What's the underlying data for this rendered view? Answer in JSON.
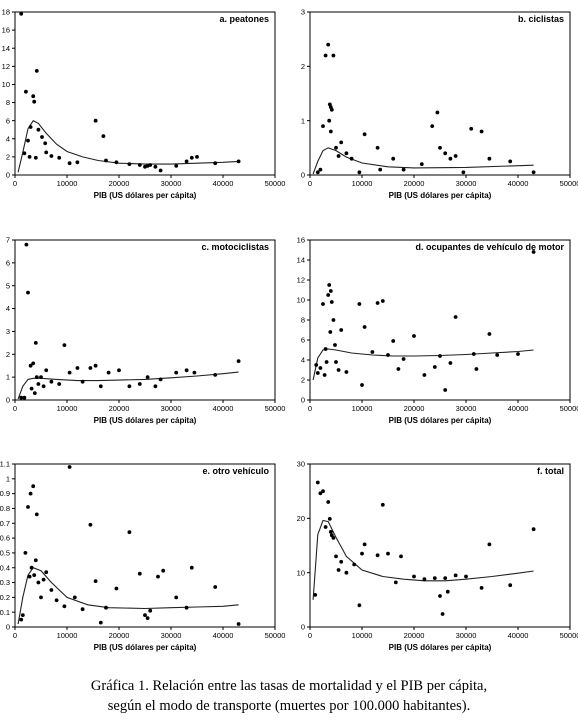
{
  "caption": {
    "line1": "Gráfica 1. Relación entre las tasas de mortalidad y el PIB per cápita,",
    "line2": "según el modo de transporte (muertes por 100.000 habitantes)."
  },
  "chart_data": [
    {
      "type": "scatter",
      "title": "a. peatones",
      "xlabel": "PIB (US dólares per cápita)",
      "ylabel": "",
      "xlim": [
        0,
        50000
      ],
      "ylim": [
        0,
        18
      ],
      "x_ticks": [
        0,
        10000,
        20000,
        30000,
        40000,
        50000
      ],
      "y_ticks": [
        0,
        2,
        4,
        6,
        8,
        10,
        12,
        14,
        16,
        18
      ],
      "points": [
        [
          1200,
          17.8
        ],
        [
          2100,
          9.2
        ],
        [
          3000,
          5.3
        ],
        [
          3500,
          8.7
        ],
        [
          3700,
          8.1
        ],
        [
          4200,
          11.5
        ],
        [
          2500,
          3.8
        ],
        [
          1800,
          2.4
        ],
        [
          2800,
          2.0
        ],
        [
          4000,
          1.9
        ],
        [
          4500,
          5.0
        ],
        [
          5200,
          4.2
        ],
        [
          5800,
          3.5
        ],
        [
          6000,
          2.5
        ],
        [
          7000,
          2.1
        ],
        [
          8500,
          1.9
        ],
        [
          10500,
          1.3
        ],
        [
          12000,
          1.4
        ],
        [
          15500,
          6.0
        ],
        [
          17000,
          4.3
        ],
        [
          17500,
          1.6
        ],
        [
          19500,
          1.4
        ],
        [
          22000,
          1.2
        ],
        [
          24000,
          1.1
        ],
        [
          25000,
          0.9
        ],
        [
          25500,
          1.0
        ],
        [
          26000,
          1.1
        ],
        [
          27000,
          0.9
        ],
        [
          28000,
          0.5
        ],
        [
          31000,
          1.0
        ],
        [
          33000,
          1.5
        ],
        [
          34000,
          1.9
        ],
        [
          35000,
          2.0
        ],
        [
          38500,
          1.3
        ],
        [
          43000,
          1.5
        ]
      ],
      "curve": [
        [
          600,
          0.3
        ],
        [
          1500,
          2.5
        ],
        [
          2500,
          5.1
        ],
        [
          3500,
          6.0
        ],
        [
          4500,
          5.7
        ],
        [
          6000,
          4.6
        ],
        [
          8000,
          3.4
        ],
        [
          10000,
          2.6
        ],
        [
          13000,
          2.0
        ],
        [
          16000,
          1.6
        ],
        [
          20000,
          1.3
        ],
        [
          25000,
          1.2
        ],
        [
          30000,
          1.2
        ],
        [
          35000,
          1.3
        ],
        [
          40000,
          1.4
        ],
        [
          43000,
          1.5
        ]
      ]
    },
    {
      "type": "scatter",
      "title": "b. ciclistas",
      "xlabel": "PIB (US dólares per cápita)",
      "ylabel": "",
      "xlim": [
        0,
        50000
      ],
      "ylim": [
        0,
        3
      ],
      "x_ticks": [
        0,
        10000,
        20000,
        30000,
        40000,
        50000
      ],
      "y_ticks": [
        0,
        1,
        2,
        3
      ],
      "points": [
        [
          1500,
          0.05
        ],
        [
          2000,
          0.1
        ],
        [
          2500,
          0.9
        ],
        [
          3000,
          2.2
        ],
        [
          3500,
          2.4
        ],
        [
          3800,
          1.3
        ],
        [
          4000,
          1.25
        ],
        [
          4200,
          1.2
        ],
        [
          4500,
          2.2
        ],
        [
          3700,
          1.0
        ],
        [
          4000,
          0.8
        ],
        [
          5000,
          0.5
        ],
        [
          5500,
          0.35
        ],
        [
          6000,
          0.6
        ],
        [
          7000,
          0.4
        ],
        [
          8000,
          0.3
        ],
        [
          9500,
          0.05
        ],
        [
          10500,
          0.75
        ],
        [
          13000,
          0.5
        ],
        [
          13500,
          0.1
        ],
        [
          16000,
          0.3
        ],
        [
          18000,
          0.1
        ],
        [
          21500,
          0.2
        ],
        [
          23500,
          0.9
        ],
        [
          24500,
          1.15
        ],
        [
          25000,
          0.5
        ],
        [
          26000,
          0.4
        ],
        [
          27000,
          0.3
        ],
        [
          28000,
          0.35
        ],
        [
          29500,
          0.05
        ],
        [
          31000,
          0.85
        ],
        [
          33000,
          0.8
        ],
        [
          34500,
          0.3
        ],
        [
          38500,
          0.25
        ],
        [
          43000,
          0.05
        ]
      ],
      "curve": [
        [
          600,
          0.02
        ],
        [
          1500,
          0.25
        ],
        [
          2500,
          0.45
        ],
        [
          3500,
          0.5
        ],
        [
          5000,
          0.45
        ],
        [
          7000,
          0.33
        ],
        [
          10000,
          0.22
        ],
        [
          15000,
          0.15
        ],
        [
          20000,
          0.13
        ],
        [
          30000,
          0.14
        ],
        [
          43000,
          0.18
        ]
      ]
    },
    {
      "type": "scatter",
      "title": "c. motociclistas",
      "xlabel": "PIB (US dólares per cápita)",
      "ylabel": "",
      "xlim": [
        0,
        50000
      ],
      "ylim": [
        0,
        7
      ],
      "x_ticks": [
        0,
        10000,
        20000,
        30000,
        40000,
        50000
      ],
      "y_ticks": [
        0,
        1,
        2,
        3,
        4,
        5,
        6,
        7
      ],
      "points": [
        [
          1200,
          0.1
        ],
        [
          1800,
          0.1
        ],
        [
          2200,
          6.8
        ],
        [
          2500,
          4.7
        ],
        [
          3000,
          1.5
        ],
        [
          3500,
          1.6
        ],
        [
          4000,
          2.5
        ],
        [
          4200,
          1.0
        ],
        [
          3200,
          0.5
        ],
        [
          3800,
          0.3
        ],
        [
          4500,
          0.7
        ],
        [
          5000,
          1.0
        ],
        [
          5500,
          0.6
        ],
        [
          6000,
          1.3
        ],
        [
          7000,
          0.8
        ],
        [
          8500,
          0.7
        ],
        [
          9500,
          2.4
        ],
        [
          10500,
          1.2
        ],
        [
          12000,
          1.4
        ],
        [
          13000,
          0.8
        ],
        [
          14500,
          1.4
        ],
        [
          15500,
          1.5
        ],
        [
          16500,
          0.6
        ],
        [
          18000,
          1.2
        ],
        [
          20000,
          1.3
        ],
        [
          22000,
          0.6
        ],
        [
          24000,
          0.7
        ],
        [
          25500,
          1.0
        ],
        [
          27000,
          0.6
        ],
        [
          28000,
          0.9
        ],
        [
          31000,
          1.2
        ],
        [
          33000,
          1.3
        ],
        [
          34500,
          1.2
        ],
        [
          38500,
          1.1
        ],
        [
          43000,
          1.7
        ]
      ],
      "curve": [
        [
          600,
          0.05
        ],
        [
          1500,
          0.6
        ],
        [
          2500,
          0.9
        ],
        [
          3500,
          0.95
        ],
        [
          5000,
          0.95
        ],
        [
          8000,
          0.9
        ],
        [
          12000,
          0.85
        ],
        [
          16000,
          0.85
        ],
        [
          20000,
          0.87
        ],
        [
          25000,
          0.9
        ],
        [
          30000,
          0.97
        ],
        [
          35000,
          1.05
        ],
        [
          40000,
          1.15
        ],
        [
          43000,
          1.22
        ]
      ]
    },
    {
      "type": "scatter",
      "title": "d. ocupantes de vehículo de motor",
      "xlabel": "PIB (US dólares per cápita)",
      "ylabel": "",
      "xlim": [
        0,
        50000
      ],
      "ylim": [
        0,
        16
      ],
      "x_ticks": [
        0,
        10000,
        20000,
        30000,
        40000,
        50000
      ],
      "y_ticks": [
        0,
        2,
        4,
        6,
        8,
        10,
        12,
        14,
        16
      ],
      "points": [
        [
          1200,
          3.5
        ],
        [
          1500,
          2.7
        ],
        [
          2000,
          3.2
        ],
        [
          2500,
          9.6
        ],
        [
          2800,
          2.5
        ],
        [
          3000,
          5.1
        ],
        [
          3200,
          3.8
        ],
        [
          3500,
          10.5
        ],
        [
          3700,
          11.5
        ],
        [
          4000,
          10.9
        ],
        [
          4200,
          9.8
        ],
        [
          4500,
          8.0
        ],
        [
          3900,
          6.8
        ],
        [
          4800,
          5.5
        ],
        [
          5000,
          3.8
        ],
        [
          5500,
          3.0
        ],
        [
          6000,
          7.0
        ],
        [
          7000,
          2.8
        ],
        [
          9500,
          9.6
        ],
        [
          10000,
          1.5
        ],
        [
          10500,
          7.3
        ],
        [
          12000,
          4.8
        ],
        [
          13000,
          9.7
        ],
        [
          14000,
          9.9
        ],
        [
          15000,
          4.5
        ],
        [
          16000,
          5.9
        ],
        [
          17000,
          3.1
        ],
        [
          18000,
          4.1
        ],
        [
          20000,
          6.4
        ],
        [
          22000,
          2.5
        ],
        [
          24000,
          3.3
        ],
        [
          25000,
          4.4
        ],
        [
          26000,
          1.0
        ],
        [
          27000,
          3.7
        ],
        [
          28000,
          8.3
        ],
        [
          31500,
          4.6
        ],
        [
          32000,
          3.1
        ],
        [
          34500,
          6.6
        ],
        [
          36000,
          4.5
        ],
        [
          40000,
          4.6
        ],
        [
          43000,
          14.8
        ]
      ],
      "curve": [
        [
          600,
          2.0
        ],
        [
          1500,
          4.2
        ],
        [
          2500,
          5.0
        ],
        [
          3500,
          5.1
        ],
        [
          5000,
          5.0
        ],
        [
          8000,
          4.7
        ],
        [
          12000,
          4.5
        ],
        [
          16000,
          4.4
        ],
        [
          20000,
          4.4
        ],
        [
          25000,
          4.45
        ],
        [
          30000,
          4.55
        ],
        [
          35000,
          4.7
        ],
        [
          40000,
          4.85
        ],
        [
          43000,
          5.0
        ]
      ]
    },
    {
      "type": "scatter",
      "title": "e. otro vehículo",
      "xlabel": "PIB (US dólares per cápita)",
      "ylabel": "",
      "xlim": [
        0,
        50000
      ],
      "ylim": [
        0,
        1.1
      ],
      "x_ticks": [
        0,
        10000,
        20000,
        30000,
        40000,
        50000
      ],
      "y_ticks": [
        0,
        0.1,
        0.2,
        0.3,
        0.4,
        0.5,
        0.6,
        0.7,
        0.8,
        0.9,
        1.0,
        1.1
      ],
      "y_tick_labels": [
        "0",
        "0.1",
        "0.2",
        "0.3",
        "0.4",
        "0.5",
        "0.6",
        "0.7",
        "0.8",
        "0.9",
        "1",
        "1.1"
      ],
      "points": [
        [
          1200,
          0.05
        ],
        [
          1500,
          0.08
        ],
        [
          2000,
          0.5
        ],
        [
          2500,
          0.81
        ],
        [
          2800,
          0.34
        ],
        [
          3000,
          0.9
        ],
        [
          3200,
          0.4
        ],
        [
          3500,
          0.95
        ],
        [
          3700,
          0.35
        ],
        [
          4000,
          0.45
        ],
        [
          4200,
          0.76
        ],
        [
          4500,
          0.3
        ],
        [
          5000,
          0.2
        ],
        [
          5500,
          0.32
        ],
        [
          6000,
          0.37
        ],
        [
          7000,
          0.25
        ],
        [
          8000,
          0.18
        ],
        [
          9500,
          0.14
        ],
        [
          10500,
          1.08
        ],
        [
          11500,
          0.2
        ],
        [
          13000,
          0.12
        ],
        [
          14500,
          0.69
        ],
        [
          15500,
          0.31
        ],
        [
          16500,
          0.03
        ],
        [
          17500,
          0.13
        ],
        [
          19500,
          0.26
        ],
        [
          22000,
          0.64
        ],
        [
          24000,
          0.36
        ],
        [
          25000,
          0.08
        ],
        [
          25500,
          0.06
        ],
        [
          26000,
          0.11
        ],
        [
          27500,
          0.34
        ],
        [
          28500,
          0.38
        ],
        [
          31000,
          0.2
        ],
        [
          33000,
          0.13
        ],
        [
          34000,
          0.4
        ],
        [
          38500,
          0.27
        ],
        [
          43000,
          0.02
        ]
      ],
      "curve": [
        [
          600,
          0.02
        ],
        [
          1500,
          0.2
        ],
        [
          2500,
          0.35
        ],
        [
          3500,
          0.4
        ],
        [
          5000,
          0.38
        ],
        [
          7000,
          0.3
        ],
        [
          10000,
          0.2
        ],
        [
          14000,
          0.15
        ],
        [
          18000,
          0.13
        ],
        [
          25000,
          0.125
        ],
        [
          30000,
          0.13
        ],
        [
          35000,
          0.135
        ],
        [
          40000,
          0.14
        ],
        [
          43000,
          0.15
        ]
      ]
    },
    {
      "type": "scatter",
      "title": "f. total",
      "xlabel": "PIB (US dólares per cápita)",
      "ylabel": "",
      "xlim": [
        0,
        50000
      ],
      "ylim": [
        0,
        30
      ],
      "x_ticks": [
        0,
        10000,
        20000,
        30000,
        40000,
        50000
      ],
      "y_ticks": [
        0,
        10,
        20,
        30
      ],
      "points": [
        [
          1000,
          5.9
        ],
        [
          1500,
          26.6
        ],
        [
          2000,
          24.6
        ],
        [
          2500,
          25.0
        ],
        [
          3000,
          18.4
        ],
        [
          3500,
          23.0
        ],
        [
          3800,
          19.9
        ],
        [
          4000,
          17.5
        ],
        [
          4200,
          16.9
        ],
        [
          4500,
          16.4
        ],
        [
          5000,
          13.0
        ],
        [
          5500,
          10.5
        ],
        [
          6000,
          12.0
        ],
        [
          7000,
          10.0
        ],
        [
          8500,
          11.5
        ],
        [
          9500,
          4.0
        ],
        [
          10000,
          13.5
        ],
        [
          10500,
          15.2
        ],
        [
          13000,
          13.2
        ],
        [
          14000,
          22.5
        ],
        [
          15000,
          13.5
        ],
        [
          16500,
          8.2
        ],
        [
          17500,
          13.0
        ],
        [
          20000,
          9.3
        ],
        [
          22000,
          8.8
        ],
        [
          24000,
          9.0
        ],
        [
          25000,
          5.7
        ],
        [
          25500,
          2.4
        ],
        [
          26000,
          9.0
        ],
        [
          26500,
          6.5
        ],
        [
          28000,
          9.5
        ],
        [
          30000,
          9.3
        ],
        [
          33000,
          7.2
        ],
        [
          34500,
          15.2
        ],
        [
          38500,
          7.7
        ],
        [
          43000,
          18.0
        ]
      ],
      "curve": [
        [
          600,
          5.0
        ],
        [
          1500,
          17.0
        ],
        [
          2500,
          19.6
        ],
        [
          3500,
          19.4
        ],
        [
          5000,
          16.5
        ],
        [
          7000,
          13.0
        ],
        [
          10000,
          10.5
        ],
        [
          14000,
          9.3
        ],
        [
          18000,
          8.8
        ],
        [
          22000,
          8.5
        ],
        [
          26000,
          8.5
        ],
        [
          30000,
          8.8
        ],
        [
          35000,
          9.3
        ],
        [
          40000,
          9.9
        ],
        [
          43000,
          10.3
        ]
      ]
    }
  ]
}
